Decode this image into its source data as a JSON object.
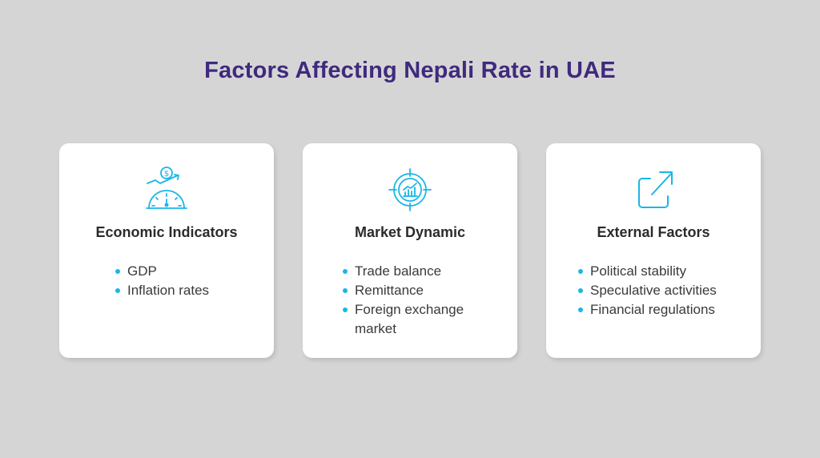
{
  "title": "Factors Affecting Nepali Rate in UAE",
  "accent_color": "#1ab6e6",
  "title_color": "#3f2a7d",
  "cards": [
    {
      "icon": "speedometer-dollar-icon",
      "title": "Economic Indicators",
      "items": [
        "GDP",
        "Inflation rates"
      ]
    },
    {
      "icon": "target-chart-icon",
      "title": "Market Dynamic",
      "items": [
        "Trade balance",
        "Remittance",
        "Foreign exchange market"
      ]
    },
    {
      "icon": "external-link-icon",
      "title": "External Factors",
      "items": [
        "Political stability",
        "Speculative activities",
        "Financial regulations"
      ]
    }
  ]
}
